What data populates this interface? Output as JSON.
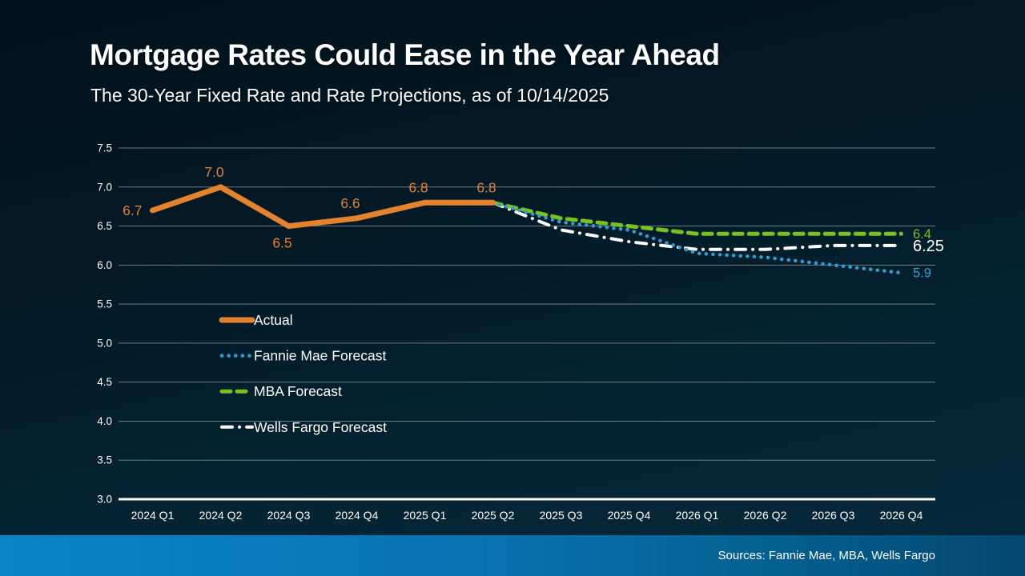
{
  "title": "Mortgage Rates Could Ease in the Year Ahead",
  "subtitle": "The 30-Year Fixed Rate and Rate Projections, as of 10/14/2025",
  "footer": {
    "sources": "Sources: Fannie Mae, MBA, Wells Fargo"
  },
  "colors": {
    "background_top": "#02121c",
    "background_bottom": "#07293d",
    "text": "#ffffff",
    "gridline": "rgba(255,255,255,0.42)",
    "axis_line": "#ffffff",
    "actual": "#e3832e",
    "fannie": "#2d9fd8",
    "mba": "#76c21f",
    "wells": "#ffffff",
    "footer_left": "#0a83c7",
    "footer_right": "#03486f"
  },
  "chart_data": {
    "type": "line",
    "title": "The 30-Year Fixed Rate and Rate Projections, as of 10/14/2025",
    "xlabel": "",
    "ylabel": "",
    "ylim": [
      3.0,
      7.5
    ],
    "ytick_step": 0.5,
    "grid": true,
    "legend_position": "inside-left-middle",
    "categories": [
      "2024 Q1",
      "2024 Q2",
      "2024 Q3",
      "2024 Q4",
      "2025 Q1",
      "2025 Q2",
      "2025 Q3",
      "2025 Q4",
      "2026 Q1",
      "2026 Q2",
      "2026 Q3",
      "2026 Q4"
    ],
    "yticks": [
      "7.5",
      "7.0",
      "6.5",
      "6.0",
      "5.5",
      "5.0",
      "4.5",
      "4.0",
      "3.5",
      "3.0"
    ],
    "series": [
      {
        "name": "Actual",
        "style": "solid",
        "color_key": "actual",
        "values": [
          6.7,
          7.0,
          6.5,
          6.6,
          6.8,
          6.8,
          null,
          null,
          null,
          null,
          null,
          null
        ],
        "point_labels": [
          "6.7",
          "7.0",
          "6.5",
          "6.6",
          "6.8",
          "6.8"
        ],
        "label_positions": [
          "left",
          "above",
          "below",
          "above",
          "above",
          "above"
        ]
      },
      {
        "name": "Fannie Mae Forecast",
        "style": "dotted",
        "color_key": "fannie",
        "values": [
          null,
          null,
          null,
          null,
          null,
          6.8,
          6.55,
          6.45,
          6.15,
          6.1,
          6.0,
          5.9
        ],
        "end_label": "5.9",
        "end_label_large": false
      },
      {
        "name": "MBA Forecast",
        "style": "dashed",
        "color_key": "mba",
        "values": [
          null,
          null,
          null,
          null,
          null,
          6.8,
          6.6,
          6.5,
          6.4,
          6.4,
          6.4,
          6.4
        ],
        "end_label": "6.4",
        "end_label_large": false
      },
      {
        "name": "Wells Fargo Forecast",
        "style": "dashdot",
        "color_key": "wells",
        "values": [
          null,
          null,
          null,
          null,
          null,
          6.8,
          6.45,
          6.3,
          6.2,
          6.2,
          6.25,
          6.25
        ],
        "end_label": "6.25",
        "end_label_large": true
      }
    ],
    "legend": [
      {
        "label": "Actual",
        "series_index": 0
      },
      {
        "label": "Fannie Mae Forecast",
        "series_index": 1
      },
      {
        "label": "MBA Forecast",
        "series_index": 2
      },
      {
        "label": "Wells Fargo Forecast",
        "series_index": 3
      }
    ]
  }
}
